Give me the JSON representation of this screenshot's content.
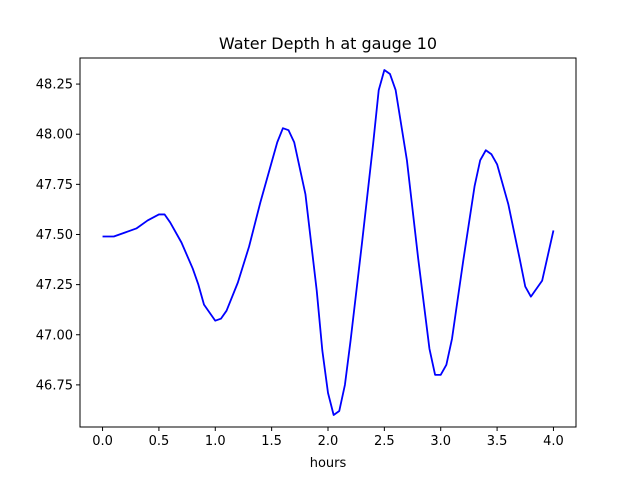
{
  "chart_data": {
    "type": "line",
    "title": "Water Depth h at gauge 10",
    "xlabel": "hours",
    "ylabel": "",
    "xlim": [
      -0.2,
      4.2
    ],
    "ylim": [
      46.54,
      48.38
    ],
    "grid": false,
    "legend": "none",
    "x_ticks": [
      0.0,
      0.5,
      1.0,
      1.5,
      2.0,
      2.5,
      3.0,
      3.5,
      4.0
    ],
    "x_tick_labels": [
      "0.0",
      "0.5",
      "1.0",
      "1.5",
      "2.0",
      "2.5",
      "3.0",
      "3.5",
      "4.0"
    ],
    "y_ticks": [
      46.75,
      47.0,
      47.25,
      47.5,
      47.75,
      48.0,
      48.25
    ],
    "y_tick_labels": [
      "46.75",
      "47.00",
      "47.25",
      "47.50",
      "47.75",
      "48.00",
      "48.25"
    ],
    "series": [
      {
        "color": "#0000ff",
        "x": [
          0.0,
          0.1,
          0.2,
          0.3,
          0.4,
          0.5,
          0.55,
          0.6,
          0.7,
          0.8,
          0.85,
          0.9,
          1.0,
          1.05,
          1.1,
          1.2,
          1.3,
          1.4,
          1.5,
          1.55,
          1.6,
          1.65,
          1.7,
          1.8,
          1.9,
          1.95,
          2.0,
          2.05,
          2.1,
          2.15,
          2.2,
          2.3,
          2.4,
          2.45,
          2.5,
          2.55,
          2.6,
          2.7,
          2.8,
          2.9,
          2.95,
          3.0,
          3.05,
          3.1,
          3.2,
          3.3,
          3.35,
          3.4,
          3.45,
          3.5,
          3.6,
          3.7,
          3.75,
          3.8,
          3.9,
          4.0
        ],
        "y": [
          47.49,
          47.49,
          47.51,
          47.53,
          47.57,
          47.6,
          47.6,
          47.56,
          47.46,
          47.33,
          47.25,
          47.15,
          47.07,
          47.08,
          47.12,
          47.26,
          47.44,
          47.66,
          47.86,
          47.96,
          48.03,
          48.02,
          47.96,
          47.7,
          47.22,
          46.92,
          46.71,
          46.6,
          46.62,
          46.75,
          46.97,
          47.45,
          47.95,
          48.22,
          48.32,
          48.3,
          48.22,
          47.87,
          47.38,
          46.93,
          46.8,
          46.8,
          46.85,
          46.98,
          47.37,
          47.74,
          47.87,
          47.92,
          47.9,
          47.85,
          47.65,
          47.38,
          47.24,
          47.19,
          47.27,
          47.52
        ]
      }
    ]
  }
}
